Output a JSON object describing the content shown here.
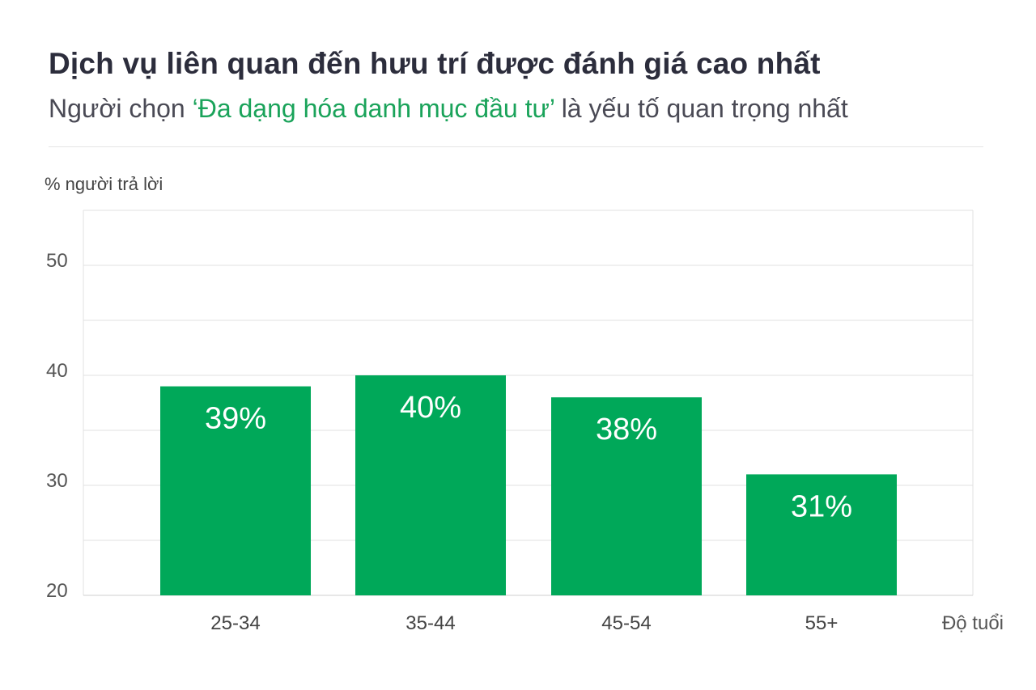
{
  "header": {
    "title": "Dịch vụ liên quan đến hưu trí được đánh giá cao nhất",
    "subtitle_before": "Người chọn ",
    "subtitle_highlight": "‘Đa dạng hóa danh mục đầu tư’",
    "subtitle_after": " là yếu tố quan trọng nhất"
  },
  "colors": {
    "bar": "#00a859",
    "highlight": "#1aa35a",
    "grid": "#e2e2e2",
    "title": "#2c2d3c"
  },
  "chart_data": {
    "type": "bar",
    "ylabel": "% người trả lời",
    "xlabel": "Độ tuổi",
    "categories": [
      "25-34",
      "35-44",
      "45-54",
      "55+"
    ],
    "values": [
      39,
      40,
      38,
      31
    ],
    "data_labels": [
      "39%",
      "40%",
      "38%",
      "31%"
    ],
    "ylim": [
      20,
      55
    ],
    "yticks": [
      20,
      30,
      40,
      50
    ],
    "grid_step": 5,
    "grid": true,
    "legend": "none"
  }
}
